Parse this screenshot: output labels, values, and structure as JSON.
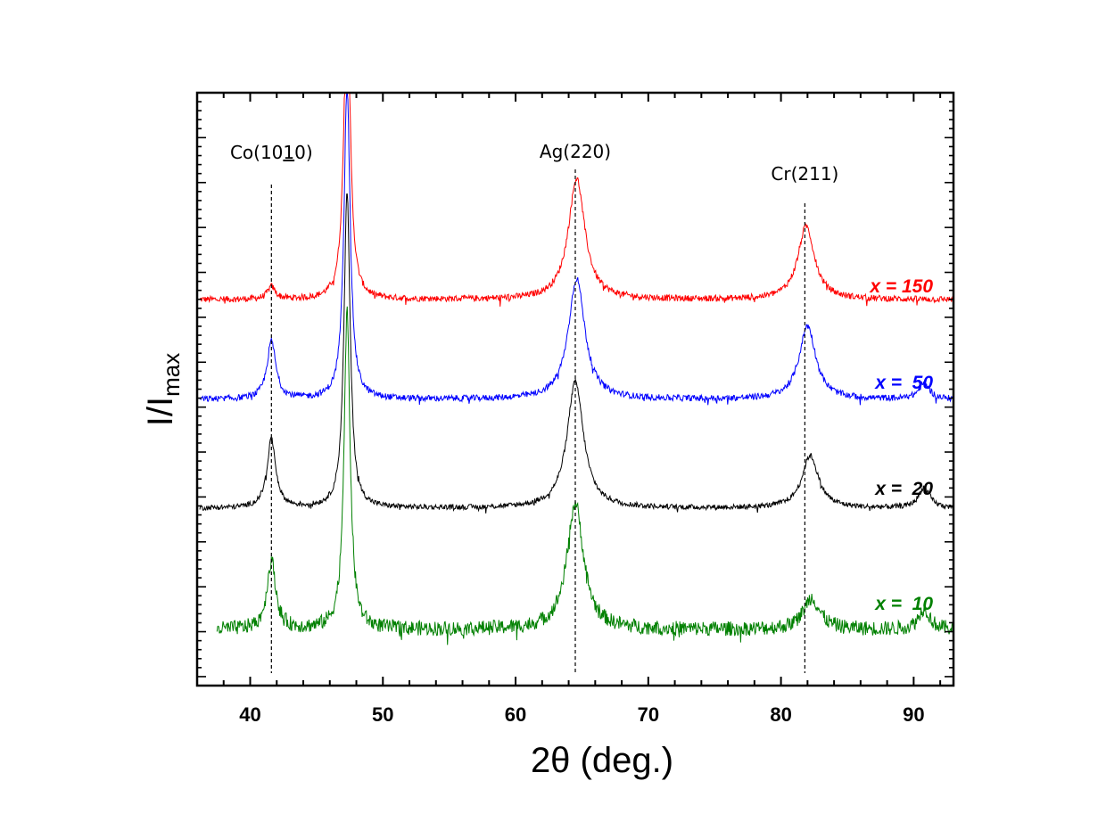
{
  "chart_data": {
    "type": "line",
    "title": "",
    "xlabel": "2θ (deg.)",
    "ylabel_main": "I/I",
    "ylabel_sub": "max",
    "xlim": [
      36,
      93
    ],
    "x_ticks": [
      40,
      50,
      60,
      70,
      80,
      90
    ],
    "y_ticks_labeled": false,
    "grid": false,
    "peaks": [
      {
        "label_pre": "Co(10",
        "label_underline": "1",
        "label_post": "0)",
        "x": 41.6
      },
      {
        "label": "Ag(220)",
        "x": 64.5
      },
      {
        "label": "Cr(211)",
        "x": 81.8
      }
    ],
    "series": [
      {
        "name": "x = 150",
        "color": "#ff0000",
        "offset": 3,
        "peaks": [
          [
            41.6,
            0.12,
            0.35
          ],
          [
            47.3,
            3.0,
            0.28
          ],
          [
            64.6,
            1.15,
            0.75
          ],
          [
            81.9,
            0.7,
            0.75
          ]
        ],
        "noise": 0.03
      },
      {
        "name": "x =  50",
        "color": "#0000ff",
        "offset": 2,
        "peaks": [
          [
            41.6,
            0.55,
            0.4
          ],
          [
            47.3,
            3.0,
            0.28
          ],
          [
            64.6,
            1.15,
            0.75
          ],
          [
            82.0,
            0.7,
            0.75
          ],
          [
            90.8,
            0.15,
            0.5
          ]
        ],
        "noise": 0.03
      },
      {
        "name": "x =  20",
        "color": "#000000",
        "offset": 1,
        "peaks": [
          [
            41.6,
            0.65,
            0.4
          ],
          [
            47.3,
            3.0,
            0.28
          ],
          [
            64.5,
            1.2,
            0.75
          ],
          [
            82.2,
            0.5,
            0.75
          ],
          [
            90.8,
            0.2,
            0.5
          ]
        ],
        "noise": 0.025
      },
      {
        "name": "x =  10",
        "color": "#008000",
        "offset": 0,
        "peaks": [
          [
            41.6,
            0.65,
            0.4
          ],
          [
            47.3,
            3.0,
            0.28
          ],
          [
            64.5,
            1.2,
            0.75
          ],
          [
            82.3,
            0.3,
            0.75
          ],
          [
            90.8,
            0.2,
            0.5
          ]
        ],
        "noise": 0.07
      }
    ]
  }
}
